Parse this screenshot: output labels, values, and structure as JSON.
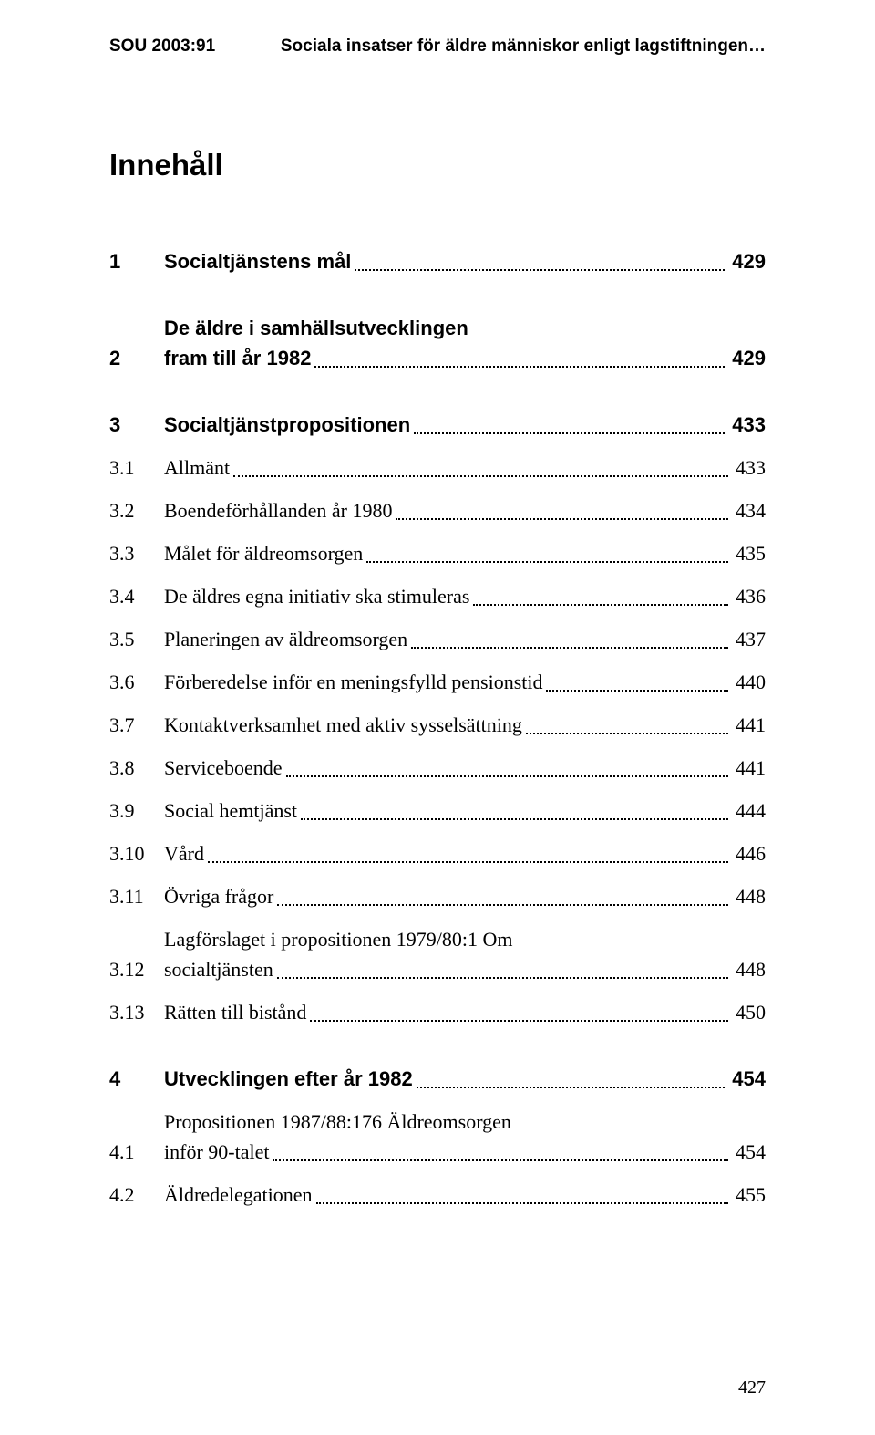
{
  "header": {
    "left": "SOU 2003:91",
    "right": "Sociala insatser för äldre människor enligt lagstiftningen…"
  },
  "heading": "Innehåll",
  "toc": [
    {
      "num": "1",
      "title": "Socialtjänstens mål",
      "page": "429",
      "bold": true,
      "multi": false,
      "gap": true
    },
    {
      "num": "2",
      "title_l1": "De äldre i samhällsutvecklingen",
      "title_l2": "fram till år 1982",
      "page": "429",
      "bold": true,
      "multi": true,
      "gap": true
    },
    {
      "num": "3",
      "title": "Socialtjänstpropositionen",
      "page": "433",
      "bold": true,
      "multi": false,
      "gap": false
    },
    {
      "num": "3.1",
      "title": "Allmänt",
      "page": "433",
      "bold": false,
      "multi": false,
      "gap": false
    },
    {
      "num": "3.2",
      "title": "Boendeförhållanden år 1980",
      "page": "434",
      "bold": false,
      "multi": false,
      "gap": false
    },
    {
      "num": "3.3",
      "title": "Målet för äldreomsorgen",
      "page": "435",
      "bold": false,
      "multi": false,
      "gap": false
    },
    {
      "num": "3.4",
      "title": "De äldres egna initiativ ska stimuleras",
      "page": "436",
      "bold": false,
      "multi": false,
      "gap": false
    },
    {
      "num": "3.5",
      "title": "Planeringen av äldreomsorgen",
      "page": "437",
      "bold": false,
      "multi": false,
      "gap": false
    },
    {
      "num": "3.6",
      "title": "Förberedelse inför en meningsfylld pensionstid",
      "page": "440",
      "bold": false,
      "multi": false,
      "gap": false
    },
    {
      "num": "3.7",
      "title": "Kontaktverksamhet med aktiv sysselsättning",
      "page": "441",
      "bold": false,
      "multi": false,
      "gap": false
    },
    {
      "num": "3.8",
      "title": "Serviceboende",
      "page": "441",
      "bold": false,
      "multi": false,
      "gap": false
    },
    {
      "num": "3.9",
      "title": "Social hemtjänst",
      "page": "444",
      "bold": false,
      "multi": false,
      "gap": false
    },
    {
      "num": "3.10",
      "title": "Vård",
      "page": "446",
      "bold": false,
      "multi": false,
      "gap": false
    },
    {
      "num": "3.11",
      "title": "Övriga frågor",
      "page": "448",
      "bold": false,
      "multi": false,
      "gap": false
    },
    {
      "num": "3.12",
      "title_l1": "Lagförslaget i propositionen 1979/80:1 Om",
      "title_l2": "socialtjänsten",
      "page": "448",
      "bold": false,
      "multi": true,
      "gap": false
    },
    {
      "num": "3.13",
      "title": "Rätten till bistånd",
      "page": "450",
      "bold": false,
      "multi": false,
      "gap": true
    },
    {
      "num": "4",
      "title": "Utvecklingen efter år 1982",
      "page": "454",
      "bold": true,
      "multi": false,
      "gap": false
    },
    {
      "num": "4.1",
      "title_l1": "Propositionen 1987/88:176 Äldreomsorgen",
      "title_l2": "inför 90-talet",
      "page": "454",
      "bold": false,
      "multi": true,
      "gap": false
    },
    {
      "num": "4.2",
      "title": "Äldredelegationen",
      "page": "455",
      "bold": false,
      "multi": false,
      "gap": false
    }
  ],
  "page_number": "427"
}
